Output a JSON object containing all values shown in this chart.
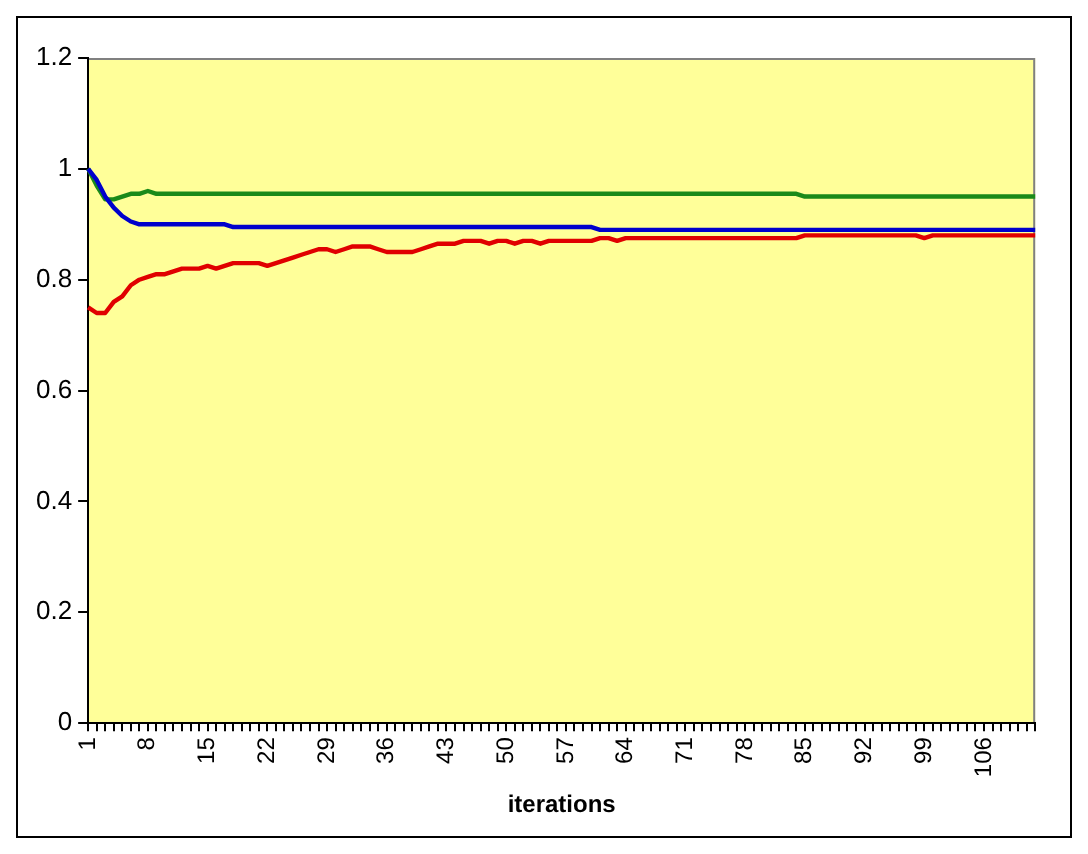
{
  "chart_data": {
    "type": "line",
    "xlabel": "iterations",
    "categories": [
      "1",
      null,
      null,
      null,
      null,
      null,
      null,
      "8",
      null,
      null,
      null,
      null,
      null,
      null,
      "15",
      null,
      null,
      null,
      null,
      null,
      null,
      "22",
      null,
      null,
      null,
      null,
      null,
      null,
      "29",
      null,
      null,
      null,
      null,
      null,
      null,
      "36",
      null,
      null,
      null,
      null,
      null,
      null,
      "43",
      null,
      null,
      null,
      null,
      null,
      null,
      "50",
      null,
      null,
      null,
      null,
      null,
      null,
      "57",
      null,
      null,
      null,
      null,
      null,
      null,
      "64",
      null,
      null,
      null,
      null,
      null,
      null,
      "71",
      null,
      null,
      null,
      null,
      null,
      null,
      "78",
      null,
      null,
      null,
      null,
      null,
      null,
      "85",
      null,
      null,
      null,
      null,
      null,
      null,
      "92",
      null,
      null,
      null,
      null,
      null,
      null,
      "99",
      null,
      null,
      null,
      null,
      null,
      null,
      "106",
      null,
      null,
      null,
      null,
      null,
      null
    ],
    "series": [
      {
        "color": "#e00000",
        "values": [
          0.75,
          0.74,
          0.74,
          0.76,
          0.77,
          0.79,
          0.8,
          0.805,
          0.81,
          0.81,
          0.815,
          0.82,
          0.82,
          0.82,
          0.825,
          0.82,
          0.825,
          0.83,
          0.83,
          0.83,
          0.83,
          0.825,
          0.83,
          0.835,
          0.84,
          0.845,
          0.85,
          0.855,
          0.855,
          0.85,
          0.855,
          0.86,
          0.86,
          0.86,
          0.855,
          0.85,
          0.85,
          0.85,
          0.85,
          0.855,
          0.86,
          0.865,
          0.865,
          0.865,
          0.87,
          0.87,
          0.87,
          0.865,
          0.87,
          0.87,
          0.865,
          0.87,
          0.87,
          0.865,
          0.87,
          0.87,
          0.87,
          0.87,
          0.87,
          0.87,
          0.875,
          0.875,
          0.87,
          0.875,
          0.875,
          0.875,
          0.875,
          0.875,
          0.875,
          0.875,
          0.875,
          0.875,
          0.875,
          0.875,
          0.875,
          0.875,
          0.875,
          0.875,
          0.875,
          0.875,
          0.875,
          0.875,
          0.875,
          0.875,
          0.88,
          0.88,
          0.88,
          0.88,
          0.88,
          0.88,
          0.88,
          0.88,
          0.88,
          0.88,
          0.88,
          0.88,
          0.88,
          0.88,
          0.875,
          0.88,
          0.88,
          0.88,
          0.88,
          0.88,
          0.88,
          0.88,
          0.88,
          0.88,
          0.88,
          0.88,
          0.88,
          0.88
        ]
      },
      {
        "color": "#0000cc",
        "values": [
          1,
          0.98,
          0.95,
          0.93,
          0.915,
          0.905,
          0.9,
          0.9,
          0.9,
          0.9,
          0.9,
          0.9,
          0.9,
          0.9,
          0.9,
          0.9,
          0.9,
          0.895,
          0.895,
          0.895,
          0.895,
          0.895,
          0.895,
          0.895,
          0.895,
          0.895,
          0.895,
          0.895,
          0.895,
          0.895,
          0.895,
          0.895,
          0.895,
          0.895,
          0.895,
          0.895,
          0.895,
          0.895,
          0.895,
          0.895,
          0.895,
          0.895,
          0.895,
          0.895,
          0.895,
          0.895,
          0.895,
          0.895,
          0.895,
          0.895,
          0.895,
          0.895,
          0.895,
          0.895,
          0.895,
          0.895,
          0.895,
          0.895,
          0.895,
          0.895,
          0.89,
          0.89,
          0.89,
          0.89,
          0.89,
          0.89,
          0.89,
          0.89,
          0.89,
          0.89,
          0.89,
          0.89,
          0.89,
          0.89,
          0.89,
          0.89,
          0.89,
          0.89,
          0.89,
          0.89,
          0.89,
          0.89,
          0.89,
          0.89,
          0.89,
          0.89,
          0.89,
          0.89,
          0.89,
          0.89,
          0.89,
          0.89,
          0.89,
          0.89,
          0.89,
          0.89,
          0.89,
          0.89,
          0.89,
          0.89,
          0.89,
          0.89,
          0.89,
          0.89,
          0.89,
          0.89,
          0.89,
          0.89,
          0.89,
          0.89,
          0.89,
          0.89
        ]
      },
      {
        "color": "#1a8a1a",
        "values": [
          1,
          0.97,
          0.945,
          0.945,
          0.95,
          0.955,
          0.955,
          0.96,
          0.955,
          0.955,
          0.955,
          0.955,
          0.955,
          0.955,
          0.955,
          0.955,
          0.955,
          0.955,
          0.955,
          0.955,
          0.955,
          0.955,
          0.955,
          0.955,
          0.955,
          0.955,
          0.955,
          0.955,
          0.955,
          0.955,
          0.955,
          0.955,
          0.955,
          0.955,
          0.955,
          0.955,
          0.955,
          0.955,
          0.955,
          0.955,
          0.955,
          0.955,
          0.955,
          0.955,
          0.955,
          0.955,
          0.955,
          0.955,
          0.955,
          0.955,
          0.955,
          0.955,
          0.955,
          0.955,
          0.955,
          0.955,
          0.955,
          0.955,
          0.955,
          0.955,
          0.955,
          0.955,
          0.955,
          0.955,
          0.955,
          0.955,
          0.955,
          0.955,
          0.955,
          0.955,
          0.955,
          0.955,
          0.955,
          0.955,
          0.955,
          0.955,
          0.955,
          0.955,
          0.955,
          0.955,
          0.955,
          0.955,
          0.955,
          0.955,
          0.95,
          0.95,
          0.95,
          0.95,
          0.95,
          0.95,
          0.95,
          0.95,
          0.95,
          0.95,
          0.95,
          0.95,
          0.95,
          0.95,
          0.95,
          0.95,
          0.95,
          0.95,
          0.95,
          0.95,
          0.95,
          0.95,
          0.95,
          0.95,
          0.95,
          0.95,
          0.95,
          0.95
        ]
      }
    ],
    "ylim": [
      0,
      1.2
    ],
    "yticks": [
      0,
      0.2,
      0.4,
      0.6,
      0.8,
      1,
      1.2
    ],
    "legend": false,
    "marker": "none",
    "line_style": "solid"
  }
}
